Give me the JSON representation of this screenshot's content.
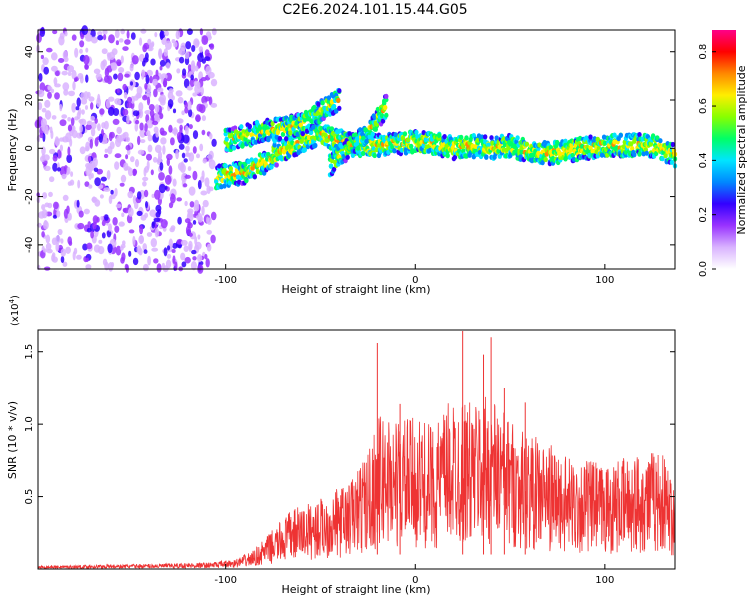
{
  "title": "C2E6.2024.101.15.44.G05",
  "chart_data": [
    {
      "type": "heatmap",
      "xlabel": "Height of straight line (km)",
      "ylabel": "Frequency (Hz)",
      "xlim": [
        -199,
        137
      ],
      "ylim": [
        -50,
        49
      ],
      "xticks": [
        -100,
        0,
        100
      ],
      "yticks": [
        -40,
        -20,
        0,
        20,
        40
      ],
      "colorbar": {
        "label": "Normalized spectral amplitude",
        "range": [
          0,
          0.88
        ],
        "ticks": [
          0.0,
          0.2,
          0.4,
          0.6,
          0.8
        ],
        "colormap": [
          "#ffffff",
          "#d9b3ff",
          "#9933ff",
          "#3300ff",
          "#0088ff",
          "#00e5ff",
          "#00ff66",
          "#88ff00",
          "#ffee00",
          "#ff8800",
          "#ff0000",
          "#ff0088"
        ]
      },
      "noise_region_x": [
        -199,
        -106
      ],
      "signal_tracks": [
        {
          "x": [
            -105,
            -90,
            -80,
            -70,
            -60,
            -50,
            -40,
            -30,
            -20,
            -10,
            0,
            10,
            20,
            30,
            40,
            50,
            60,
            70,
            80,
            90,
            100,
            110,
            120,
            130,
            137
          ],
          "y": [
            -12,
            -10,
            -6,
            -1,
            3,
            6,
            3,
            1,
            1,
            2,
            3,
            2,
            0,
            1,
            0,
            1,
            -1,
            -2,
            -1,
            0,
            1,
            1,
            2,
            0,
            -3
          ]
        },
        {
          "x": [
            -100,
            -90,
            -80,
            -70,
            -60,
            -50,
            -45,
            -40
          ],
          "y": [
            3,
            5,
            7,
            8,
            10,
            15,
            18,
            20
          ]
        },
        {
          "x": [
            -45,
            -40,
            -35,
            -30,
            -25,
            -20,
            -15
          ],
          "y": [
            -7,
            -3,
            0,
            3,
            7,
            12,
            18
          ]
        }
      ]
    },
    {
      "type": "line",
      "xlabel": "Height of straight line (km)",
      "ylabel": "SNR (10 * v/v)",
      "y_multiplier": "(x10",
      "y_multiplier_exp": "4",
      "xlim": [
        -199,
        137
      ],
      "ylim": [
        0,
        1.65
      ],
      "xticks": [
        -100,
        0,
        100
      ],
      "yticks": [
        0.5,
        1.0,
        1.5
      ],
      "ytick_labels": [
        "0.5",
        "1.0",
        "1.5"
      ],
      "line_color": "#ee3333",
      "envelope": {
        "x": [
          -199,
          -150,
          -110,
          -95,
          -85,
          -75,
          -65,
          -55,
          -45,
          -35,
          -25,
          -20,
          -15,
          -10,
          -5,
          0,
          10,
          20,
          30,
          40,
          50,
          60,
          70,
          80,
          90,
          100,
          110,
          120,
          130,
          137
        ],
        "y": [
          0.02,
          0.03,
          0.04,
          0.06,
          0.12,
          0.25,
          0.38,
          0.42,
          0.48,
          0.55,
          0.75,
          0.95,
          1.0,
          0.95,
          0.95,
          0.95,
          0.9,
          1.1,
          1.05,
          1.1,
          0.95,
          0.85,
          0.8,
          0.7,
          0.7,
          0.65,
          0.7,
          0.75,
          0.75,
          0.55
        ]
      },
      "peaks": [
        {
          "x": -20,
          "y": 1.56
        },
        {
          "x": -8,
          "y": 1.14
        },
        {
          "x": 25,
          "y": 1.65
        },
        {
          "x": 40,
          "y": 1.6
        },
        {
          "x": 36,
          "y": 1.48
        },
        {
          "x": 47,
          "y": 1.25
        },
        {
          "x": 58,
          "y": 1.15
        }
      ]
    }
  ]
}
